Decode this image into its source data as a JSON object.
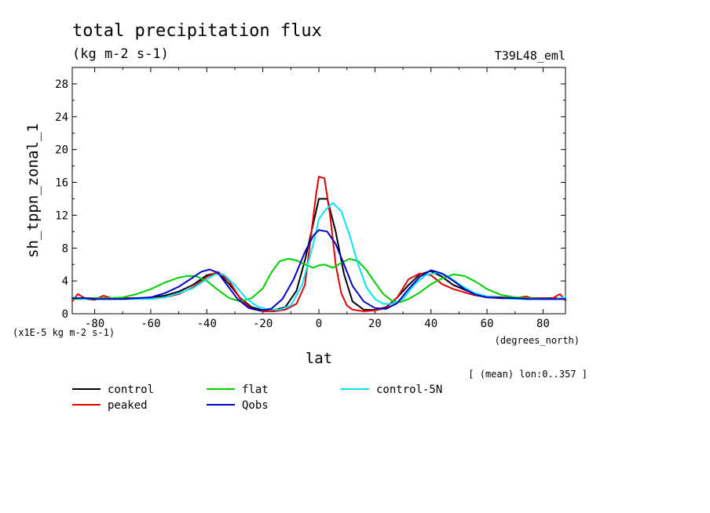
{
  "chart_data": {
    "type": "line",
    "title": "total precipitation flux",
    "units_label": "(kg m-2 s-1)",
    "run_label": "T39L48_eml",
    "ylabel": "sh_tppn_zonal_1",
    "y_scale_note": "(x1E-5 kg m-2 s-1)",
    "xlabel": "lat",
    "x_units_note": "(degrees_north)",
    "mean_note": "[ (mean) lon:0..357 ]",
    "xlim": [
      -88,
      88
    ],
    "ylim": [
      0,
      30
    ],
    "xticks": [
      -80,
      -60,
      -40,
      -20,
      0,
      20,
      40,
      60,
      80
    ],
    "yticks": [
      0,
      4,
      8,
      12,
      16,
      20,
      24,
      28
    ],
    "xtick_labels": [
      "-80",
      "-60",
      "-40",
      "-20",
      "0",
      "20",
      "40",
      "60",
      "80"
    ],
    "ytick_labels": [
      "0",
      "4",
      "8",
      "12",
      "16",
      "20",
      "24",
      "28"
    ],
    "series": [
      {
        "name": "control",
        "color": "#000000",
        "x": [
          -88,
          -84,
          -80,
          -75,
          -70,
          -65,
          -60,
          -55,
          -50,
          -45,
          -40,
          -36,
          -32,
          -28,
          -24,
          -20,
          -16,
          -12,
          -8,
          -5,
          -2,
          0,
          3,
          6,
          9,
          12,
          16,
          20,
          24,
          28,
          32,
          36,
          40,
          44,
          48,
          55,
          60,
          65,
          70,
          75,
          80,
          84,
          88
        ],
        "y": [
          1.8,
          1.9,
          1.9,
          1.9,
          1.9,
          1.9,
          2.0,
          2.2,
          2.7,
          3.5,
          4.7,
          5.0,
          3.6,
          1.9,
          0.8,
          0.45,
          0.45,
          0.8,
          2.8,
          6.5,
          11.0,
          14.0,
          14.0,
          10.0,
          4.8,
          1.5,
          0.5,
          0.45,
          0.8,
          2.0,
          3.5,
          4.8,
          5.2,
          4.5,
          3.5,
          2.5,
          2.1,
          2.0,
          1.9,
          1.9,
          1.9,
          1.9,
          1.8
        ]
      },
      {
        "name": "peaked",
        "color": "#e60000",
        "x": [
          -88,
          -86,
          -83,
          -80,
          -77,
          -74,
          -70,
          -65,
          -60,
          -55,
          -50,
          -45,
          -40,
          -36,
          -32,
          -28,
          -24,
          -20,
          -16,
          -12,
          -8,
          -5,
          -3,
          -1,
          0,
          2,
          4,
          6,
          8,
          10,
          12,
          16,
          20,
          24,
          28,
          32,
          36,
          40,
          44,
          48,
          55,
          60,
          65,
          70,
          74,
          77,
          80,
          83,
          86,
          88
        ],
        "y": [
          1.5,
          2.4,
          1.8,
          1.7,
          2.2,
          1.9,
          1.9,
          1.9,
          1.9,
          2.0,
          2.4,
          3.2,
          4.5,
          5.1,
          4.0,
          1.8,
          0.6,
          0.3,
          0.3,
          0.5,
          1.2,
          3.5,
          9.0,
          14.5,
          16.7,
          16.5,
          12.0,
          6.0,
          2.5,
          1.0,
          0.5,
          0.3,
          0.4,
          0.7,
          2.0,
          4.2,
          4.9,
          4.7,
          3.6,
          3.0,
          2.3,
          2.0,
          1.9,
          1.9,
          2.1,
          1.8,
          1.9,
          1.8,
          2.4,
          1.6
        ]
      },
      {
        "name": "flat",
        "color": "#00d000",
        "x": [
          -88,
          -84,
          -80,
          -75,
          -70,
          -65,
          -60,
          -55,
          -50,
          -47,
          -44,
          -40,
          -36,
          -32,
          -28,
          -24,
          -20,
          -17,
          -14,
          -11,
          -8,
          -5,
          -2,
          0,
          2,
          5,
          8,
          11,
          14,
          17,
          20,
          23,
          26,
          29,
          32,
          36,
          40,
          44,
          48,
          52,
          56,
          60,
          65,
          70,
          75,
          80,
          84,
          88
        ],
        "y": [
          1.8,
          1.8,
          1.9,
          1.9,
          2.0,
          2.4,
          3.0,
          3.8,
          4.4,
          4.6,
          4.6,
          4.0,
          2.9,
          1.9,
          1.5,
          1.9,
          3.1,
          5.0,
          6.4,
          6.7,
          6.5,
          6.0,
          5.6,
          5.9,
          6.0,
          5.6,
          6.2,
          6.7,
          6.4,
          5.3,
          3.8,
          2.4,
          1.6,
          1.4,
          1.8,
          2.6,
          3.6,
          4.3,
          4.8,
          4.6,
          3.9,
          3.0,
          2.3,
          2.0,
          1.9,
          1.8,
          1.8,
          1.8
        ]
      },
      {
        "name": "control-5N",
        "color": "#00e6ff",
        "x": [
          -88,
          -84,
          -80,
          -75,
          -70,
          -65,
          -60,
          -55,
          -50,
          -45,
          -41,
          -37,
          -34,
          -30,
          -26,
          -22,
          -18,
          -14,
          -10,
          -6,
          -2,
          0,
          2,
          5,
          8,
          11,
          14,
          17,
          20,
          23,
          26,
          30,
          34,
          38,
          42,
          46,
          50,
          55,
          60,
          65,
          70,
          75,
          80,
          84,
          88
        ],
        "y": [
          2.0,
          1.8,
          1.8,
          1.8,
          1.8,
          1.8,
          1.8,
          2.0,
          2.5,
          3.1,
          4.0,
          4.8,
          4.8,
          3.5,
          1.9,
          0.9,
          0.5,
          0.5,
          1.0,
          3.5,
          8.5,
          11.5,
          12.5,
          13.5,
          12.5,
          9.5,
          6.0,
          3.2,
          1.8,
          1.2,
          1.2,
          1.8,
          3.5,
          4.7,
          5.0,
          4.6,
          3.6,
          2.6,
          2.1,
          1.9,
          1.8,
          1.8,
          1.8,
          1.8,
          2.0
        ]
      },
      {
        "name": "Qobs",
        "color": "#0000c8",
        "x": [
          -88,
          -84,
          -80,
          -75,
          -70,
          -65,
          -60,
          -55,
          -50,
          -45,
          -42,
          -39,
          -36,
          -33,
          -29,
          -25,
          -21,
          -17,
          -13,
          -9,
          -5,
          -2,
          0,
          3,
          6,
          9,
          12,
          16,
          20,
          24,
          28,
          32,
          36,
          40,
          44,
          48,
          52,
          56,
          60,
          65,
          70,
          75,
          80,
          84,
          88
        ],
        "y": [
          1.9,
          1.9,
          1.8,
          1.8,
          1.8,
          1.9,
          2.0,
          2.5,
          3.3,
          4.4,
          5.1,
          5.4,
          5.0,
          3.6,
          1.8,
          0.7,
          0.4,
          0.6,
          1.8,
          4.2,
          7.5,
          9.5,
          10.2,
          10.0,
          8.5,
          6.0,
          3.4,
          1.5,
          0.7,
          0.6,
          1.3,
          3.0,
          4.5,
          5.3,
          4.9,
          4.0,
          3.0,
          2.3,
          2.0,
          1.9,
          1.9,
          1.8,
          1.8,
          1.8,
          1.8
        ]
      }
    ],
    "legend": {
      "placement": "below",
      "entries": [
        "control",
        "flat",
        "control-5N",
        "peaked",
        "Qobs"
      ]
    }
  }
}
